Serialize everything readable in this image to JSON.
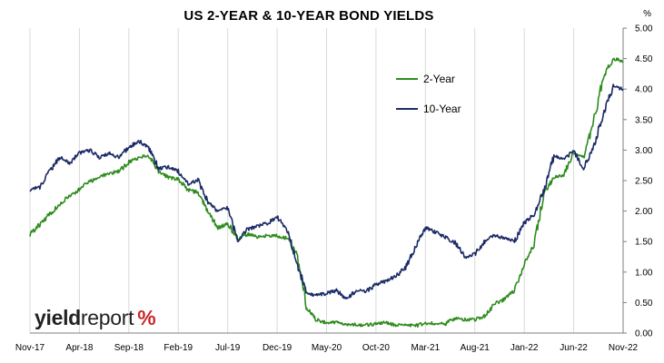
{
  "chart_data": {
    "type": "line",
    "title": "US 2-YEAR & 10-YEAR BOND YIELDS",
    "unit_label": "%",
    "x_tick_labels": [
      "Nov-17",
      "Apr-18",
      "Sep-18",
      "Feb-19",
      "Jul-19",
      "Dec-19",
      "May-20",
      "Oct-20",
      "Mar-21",
      "Aug-21",
      "Jan-22",
      "Jun-22",
      "Nov-22"
    ],
    "y_tick_labels": [
      "0.00",
      "0.50",
      "1.00",
      "1.50",
      "2.00",
      "2.50",
      "3.00",
      "3.50",
      "4.00",
      "4.50",
      "5.00"
    ],
    "ylim": [
      0,
      5
    ],
    "xlim": [
      "2017-11",
      "2022-11"
    ],
    "y_axis_position": "right",
    "grid": "vertical",
    "legend_position": "top-right",
    "x": [
      "2017-11",
      "2017-12",
      "2018-01",
      "2018-02",
      "2018-03",
      "2018-04",
      "2018-05",
      "2018-06",
      "2018-07",
      "2018-08",
      "2018-09",
      "2018-10",
      "2018-11",
      "2018-12",
      "2019-01",
      "2019-02",
      "2019-03",
      "2019-04",
      "2019-05",
      "2019-06",
      "2019-07",
      "2019-08",
      "2019-09",
      "2019-10",
      "2019-11",
      "2019-12",
      "2020-01",
      "2020-02",
      "2020-03",
      "2020-04",
      "2020-05",
      "2020-06",
      "2020-07",
      "2020-08",
      "2020-09",
      "2020-10",
      "2020-11",
      "2020-12",
      "2021-01",
      "2021-02",
      "2021-03",
      "2021-04",
      "2021-05",
      "2021-06",
      "2021-07",
      "2021-08",
      "2021-09",
      "2021-10",
      "2021-11",
      "2021-12",
      "2022-01",
      "2022-02",
      "2022-03",
      "2022-04",
      "2022-05",
      "2022-06",
      "2022-07",
      "2022-08",
      "2022-09",
      "2022-10",
      "2022-11"
    ],
    "series": [
      {
        "name": "2-Year",
        "color": "#2e8b1e",
        "values": [
          1.62,
          1.78,
          1.95,
          2.12,
          2.25,
          2.35,
          2.48,
          2.55,
          2.62,
          2.65,
          2.8,
          2.88,
          2.92,
          2.65,
          2.55,
          2.52,
          2.35,
          2.3,
          2.0,
          1.72,
          1.8,
          1.55,
          1.62,
          1.58,
          1.6,
          1.6,
          1.55,
          1.3,
          0.4,
          0.22,
          0.16,
          0.17,
          0.14,
          0.14,
          0.13,
          0.15,
          0.17,
          0.13,
          0.13,
          0.12,
          0.16,
          0.16,
          0.15,
          0.25,
          0.22,
          0.22,
          0.28,
          0.48,
          0.55,
          0.7,
          1.15,
          1.45,
          2.3,
          2.55,
          2.6,
          2.95,
          2.9,
          3.45,
          4.2,
          4.5,
          4.45
        ]
      },
      {
        "name": "10-Year",
        "color": "#1b2a66",
        "values": [
          2.35,
          2.4,
          2.65,
          2.88,
          2.78,
          2.95,
          3.0,
          2.88,
          2.95,
          2.88,
          3.05,
          3.15,
          3.05,
          2.7,
          2.72,
          2.65,
          2.45,
          2.5,
          2.15,
          2.0,
          2.05,
          1.5,
          1.7,
          1.75,
          1.8,
          1.9,
          1.7,
          1.15,
          0.65,
          0.62,
          0.65,
          0.7,
          0.55,
          0.7,
          0.68,
          0.8,
          0.85,
          0.93,
          1.08,
          1.4,
          1.73,
          1.65,
          1.58,
          1.48,
          1.25,
          1.3,
          1.5,
          1.6,
          1.55,
          1.5,
          1.8,
          1.95,
          2.35,
          2.9,
          2.85,
          3.0,
          2.7,
          3.05,
          3.6,
          4.05,
          4.0
        ]
      }
    ]
  }
}
